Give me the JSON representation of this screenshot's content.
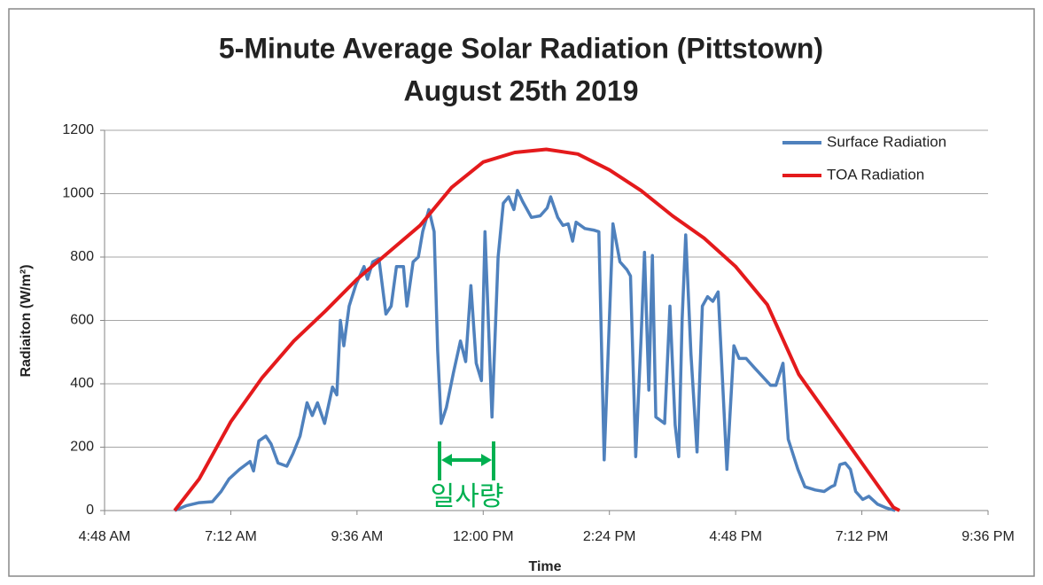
{
  "chart_data": {
    "type": "line",
    "title": [
      "5-Minute Average Solar Radiation (Pittstown)",
      "August 25th 2019"
    ],
    "x_label": "Time",
    "y_label": "Radiaiton (W/m²)",
    "annotation": "일사량",
    "legend": "upper right",
    "grid": true,
    "xlim": [
      288,
      1296
    ],
    "xticks": [
      {
        "value": 288,
        "label": "4:48 AM"
      },
      {
        "value": 432,
        "label": "7:12 AM"
      },
      {
        "value": 576,
        "label": "9:36 AM"
      },
      {
        "value": 720,
        "label": "12:00 PM"
      },
      {
        "value": 864,
        "label": "2:24 PM"
      },
      {
        "value": 1008,
        "label": "4:48 PM"
      },
      {
        "value": 1152,
        "label": "7:12 PM"
      },
      {
        "value": 1296,
        "label": "9:36 PM"
      }
    ],
    "ylim": [
      0,
      1200
    ],
    "yticks": [
      0,
      200,
      400,
      600,
      800,
      1000,
      1200
    ],
    "series": [
      {
        "name": "Surface Radiation",
        "color": "#4f81bd",
        "x": [
          368,
          381,
          396,
          411,
          421,
          430,
          442,
          454,
          458,
          464,
          472,
          478,
          486,
          496,
          503,
          511,
          519,
          525,
          531,
          539,
          548,
          553,
          557,
          561,
          567,
          575,
          584,
          588,
          594,
          601,
          609,
          615,
          621,
          625,
          629,
          633,
          640,
          646,
          651,
          658,
          664,
          668,
          672,
          678,
          686,
          694,
          700,
          706,
          712,
          718,
          722,
          730,
          737,
          743,
          749,
          755,
          759,
          765,
          775,
          785,
          793,
          797,
          805,
          811,
          817,
          822,
          826,
          836,
          846,
          852,
          858,
          868,
          876,
          884,
          888,
          894,
          900,
          904,
          909,
          913,
          917,
          927,
          933,
          939,
          943,
          947,
          951,
          957,
          964,
          970,
          976,
          982,
          988,
          998,
          1006,
          1012,
          1020,
          1028,
          1038,
          1048,
          1054,
          1062,
          1068,
          1079,
          1087,
          1099,
          1109,
          1117,
          1121,
          1127,
          1133,
          1139,
          1145,
          1153,
          1160,
          1170,
          1180,
          1190
        ],
        "values": [
          0,
          15,
          25,
          28,
          60,
          100,
          130,
          155,
          125,
          220,
          235,
          210,
          150,
          140,
          180,
          235,
          340,
          300,
          340,
          275,
          390,
          365,
          600,
          520,
          645,
          715,
          770,
          730,
          785,
          795,
          620,
          645,
          770,
          770,
          770,
          645,
          785,
          800,
          880,
          950,
          880,
          505,
          275,
          325,
          435,
          535,
          470,
          710,
          465,
          410,
          880,
          295,
          800,
          970,
          990,
          950,
          1010,
          975,
          925,
          930,
          955,
          990,
          925,
          900,
          905,
          850,
          910,
          890,
          885,
          880,
          160,
          905,
          785,
          760,
          740,
          170,
          535,
          815,
          380,
          805,
          295,
          275,
          645,
          270,
          170,
          605,
          870,
          495,
          185,
          645,
          675,
          660,
          690,
          130,
          520,
          480,
          480,
          455,
          425,
          395,
          395,
          465,
          225,
          130,
          75,
          65,
          60,
          75,
          80,
          145,
          150,
          130,
          60,
          35,
          45,
          20,
          8,
          0
        ]
      },
      {
        "name": "TOA Radiation",
        "color": "#e41a1c",
        "x": [
          368,
          396,
          432,
          468,
          504,
          540,
          576,
          612,
          648,
          684,
          720,
          756,
          792,
          828,
          864,
          900,
          936,
          972,
          1008,
          1044,
          1080,
          1116,
          1152,
          1188,
          1195
        ],
        "values": [
          0,
          100,
          280,
          420,
          535,
          630,
          730,
          815,
          900,
          1020,
          1100,
          1130,
          1140,
          1125,
          1075,
          1010,
          930,
          860,
          770,
          650,
          430,
          290,
          150,
          10,
          0
        ]
      }
    ]
  }
}
